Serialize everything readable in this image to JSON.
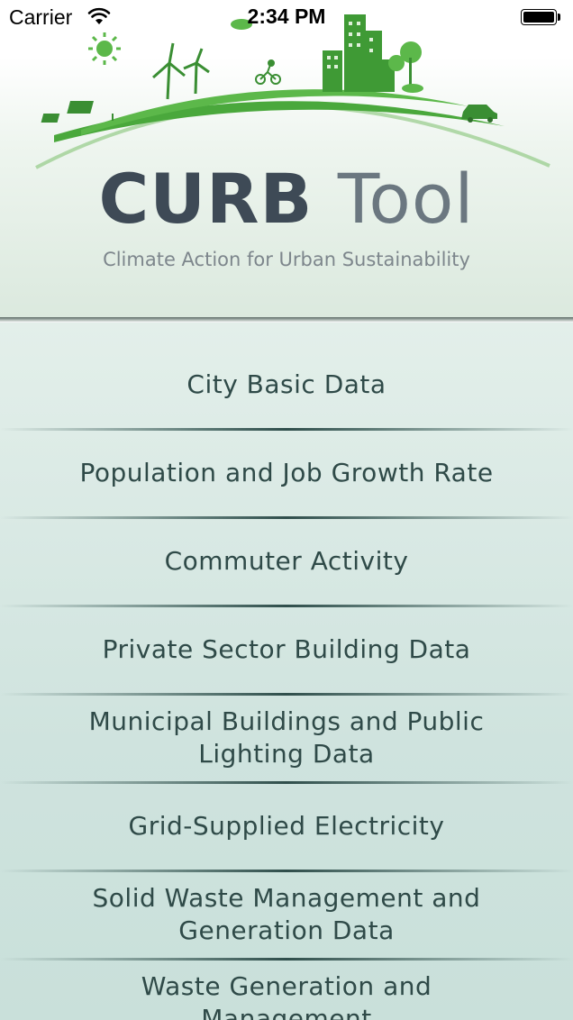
{
  "status_bar": {
    "carrier": "Carrier",
    "time": "2:34 PM"
  },
  "header": {
    "logo_title_main": "CURB",
    "logo_title_tool": "Tool",
    "logo_subtitle": "Climate Action for Urban Sustainability",
    "brand_green": "#4aa83c",
    "title_color": "#3e4a56"
  },
  "menu": {
    "items": [
      {
        "label": "City Basic Data"
      },
      {
        "label": "Population and Job Growth Rate"
      },
      {
        "label": "Commuter Activity"
      },
      {
        "label": "Private Sector Building Data"
      },
      {
        "label": "Municipal Buildings and Public Lighting Data"
      },
      {
        "label": "Grid-Supplied Electricity"
      },
      {
        "label": "Solid Waste Management and Generation Data"
      },
      {
        "label": "Waste Generation and Management"
      }
    ]
  }
}
